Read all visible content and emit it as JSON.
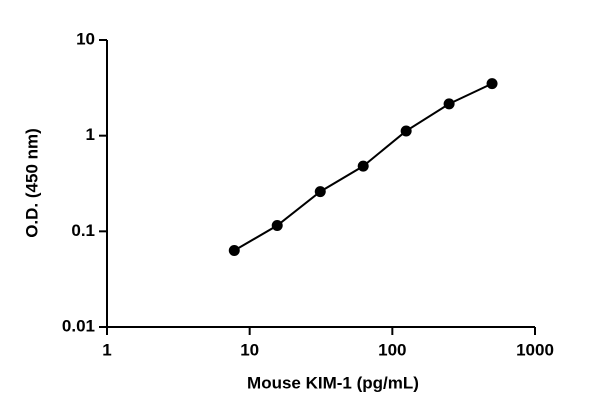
{
  "chart_data": {
    "type": "scatter",
    "x_label": "Mouse KIM-1 (pg/mL)",
    "y_label": "O.D. (450 nm)",
    "x": [
      7.8,
      15.6,
      31.25,
      62.5,
      125,
      250,
      500
    ],
    "series": [
      {
        "values": [
          0.063,
          0.115,
          0.26,
          0.48,
          1.12,
          2.15,
          3.5
        ],
        "color": "#000000"
      }
    ],
    "line": true,
    "xlog": true,
    "ylog": true,
    "xlim": [
      1,
      1000
    ],
    "ylim": [
      0.01,
      10
    ],
    "xticks": [
      1,
      10,
      100,
      1000
    ],
    "yticks": [
      0.01,
      0.1,
      1,
      10
    ]
  }
}
